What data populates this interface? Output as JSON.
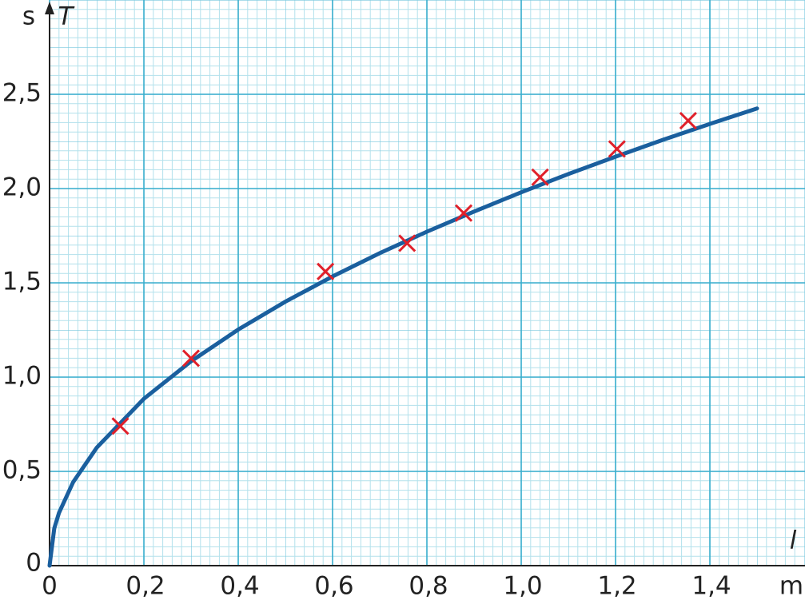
{
  "chart_data": {
    "type": "scatter",
    "y_label": "T",
    "y_unit": "s",
    "x_label": "l",
    "x_unit": "m",
    "xlim": [
      0,
      1.6
    ],
    "ylim": [
      0,
      3.0
    ],
    "xticks": [
      0,
      {
        "value": 0.2,
        "label": "0,2"
      },
      {
        "value": 0.4,
        "label": "0,4"
      },
      {
        "value": 0.6,
        "label": "0,6"
      },
      {
        "value": 0.8,
        "label": "0,8"
      },
      {
        "value": 1.0,
        "label": "1,0"
      },
      {
        "value": 1.2,
        "label": "1,2"
      },
      {
        "value": 1.4,
        "label": "1,4"
      }
    ],
    "yticks": [
      0,
      {
        "value": 0.5,
        "label": "0,5"
      },
      {
        "value": 1.0,
        "label": "1,0"
      },
      {
        "value": 1.5,
        "label": "1,5"
      },
      {
        "value": 2.0,
        "label": "2,0"
      },
      {
        "value": 2.5,
        "label": "2,5"
      }
    ],
    "grid": true,
    "points": {
      "color": "#e0202a",
      "x": [
        0.15,
        0.3,
        0.585,
        0.758,
        0.878,
        1.04,
        1.203,
        1.354
      ],
      "values": [
        0.74,
        1.1,
        1.56,
        1.71,
        1.87,
        2.06,
        2.21,
        2.36
      ]
    },
    "curve": {
      "color": "#1a5f9e",
      "x": [
        0,
        0.01,
        0.02,
        0.05,
        0.1,
        0.2,
        0.3,
        0.4,
        0.5,
        0.6,
        0.7,
        0.8,
        0.9,
        1.0,
        1.1,
        1.2,
        1.3,
        1.4,
        1.5
      ],
      "values": [
        0,
        0.198,
        0.28,
        0.443,
        0.626,
        0.885,
        1.084,
        1.252,
        1.4,
        1.534,
        1.657,
        1.771,
        1.878,
        1.98,
        2.077,
        2.169,
        2.258,
        2.343,
        2.425
      ]
    }
  }
}
